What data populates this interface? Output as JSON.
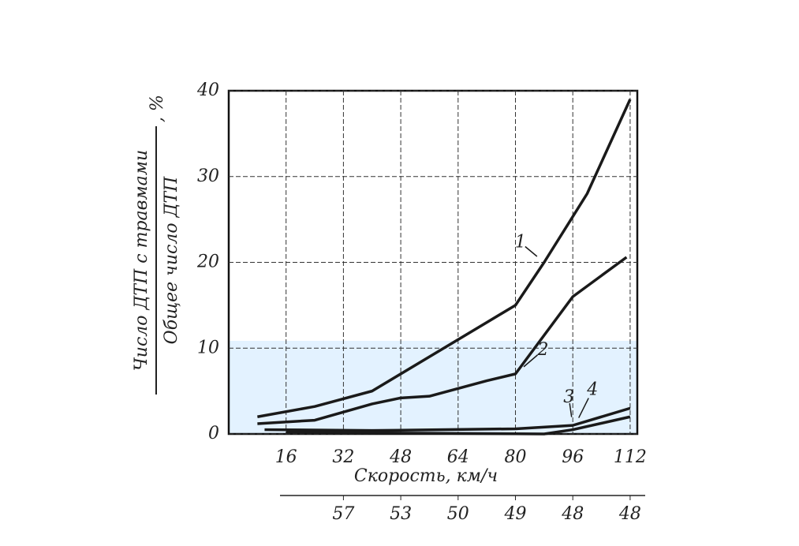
{
  "chart_data": {
    "type": "line",
    "ylabel_numerator": "Число ДТП с травмами",
    "ylabel_denominator": "Общее число ДТП",
    "ylabel_unit": ", %",
    "xlabel": "Скорость, км/ч",
    "xlim": [
      0,
      114
    ],
    "ylim": [
      0,
      40
    ],
    "xticks": [
      16,
      32,
      48,
      64,
      80,
      96,
      112
    ],
    "yticks": [
      0,
      10,
      20,
      30,
      40
    ],
    "grid": true,
    "secondary_scale": {
      "x": [
        32,
        48,
        64,
        80,
        96,
        112
      ],
      "labels": [
        57,
        53,
        50,
        49,
        48,
        48
      ]
    },
    "series": [
      {
        "name": "1",
        "color": "#1a1a1a",
        "x": [
          8,
          24,
          40,
          56,
          72,
          80,
          88,
          100,
          112
        ],
        "values": [
          2,
          3.2,
          5,
          9,
          13,
          15,
          20,
          28,
          39
        ]
      },
      {
        "name": "2",
        "color": "#1a1a1a",
        "x": [
          8,
          24,
          40,
          48,
          56,
          72,
          80,
          96,
          111
        ],
        "values": [
          1.2,
          1.6,
          3.5,
          4.2,
          4.4,
          6.2,
          7,
          16,
          20.6
        ]
      },
      {
        "name": "3",
        "color": "#1a1a1a",
        "x": [
          10,
          40,
          80,
          96,
          112
        ],
        "values": [
          0.5,
          0.4,
          0.6,
          1,
          3
        ]
      },
      {
        "name": "4",
        "color": "#1a1a1a",
        "x": [
          16,
          48,
          88,
          96,
          112
        ],
        "values": [
          0.2,
          0.1,
          0,
          0.5,
          2
        ]
      }
    ]
  }
}
